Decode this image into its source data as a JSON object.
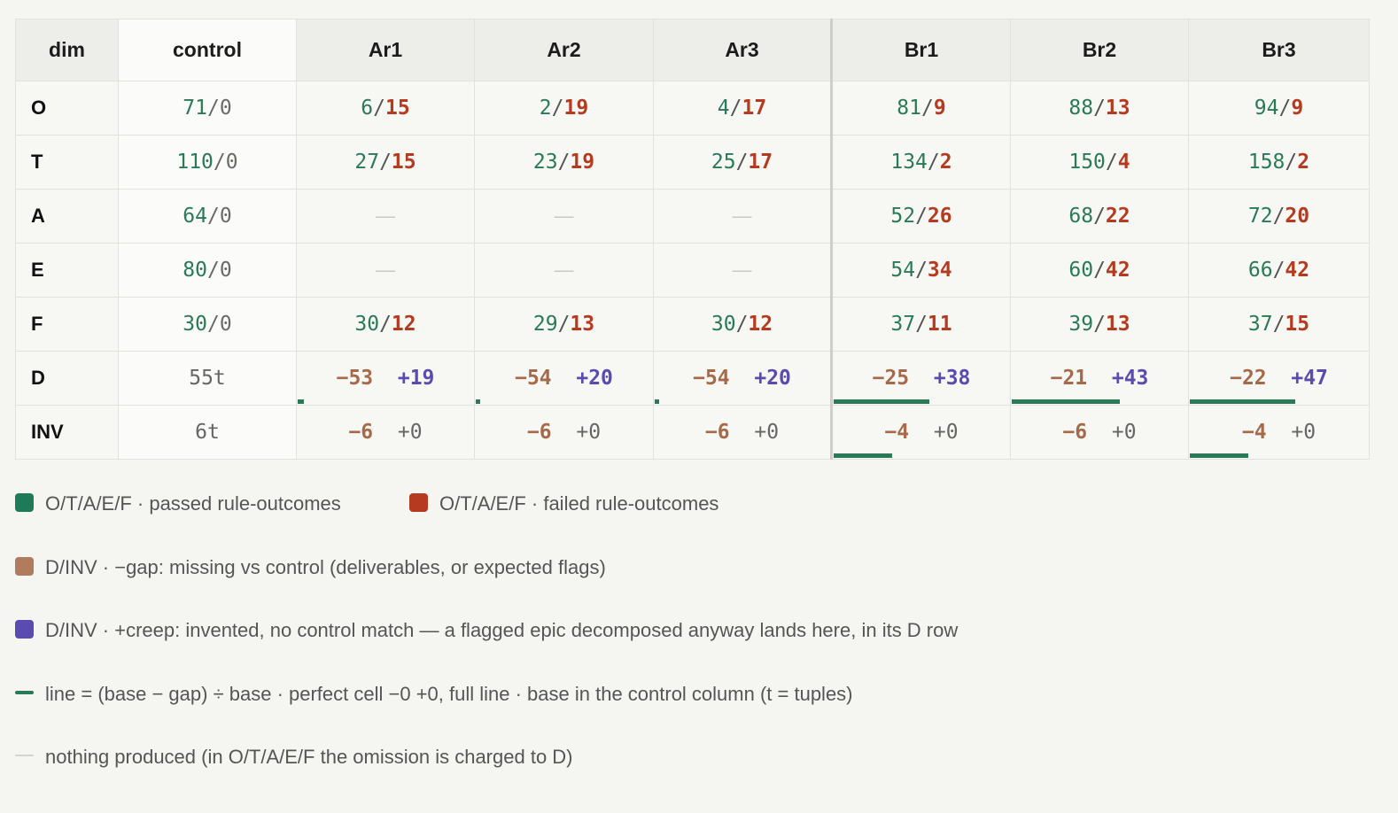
{
  "colors": {
    "pass": "#2a7a55",
    "fail": "#b53a1f",
    "gap": "#a66a4a",
    "creep": "#5a4bb0",
    "line": "#2a7a55",
    "nothing": "#c9c9c4"
  },
  "table": {
    "headers": [
      "dim",
      "control",
      "Ar1",
      "Ar2",
      "Ar3",
      "Br1",
      "Br2",
      "Br3"
    ],
    "rows": [
      {
        "dim": "O",
        "control": [
          "71",
          "0"
        ],
        "cells": [
          [
            "6",
            "15"
          ],
          [
            "2",
            "19"
          ],
          [
            "4",
            "17"
          ],
          [
            "81",
            "9"
          ],
          [
            "88",
            "13"
          ],
          [
            "94",
            "9"
          ]
        ]
      },
      {
        "dim": "T",
        "control": [
          "110",
          "0"
        ],
        "cells": [
          [
            "27",
            "15"
          ],
          [
            "23",
            "19"
          ],
          [
            "25",
            "17"
          ],
          [
            "134",
            "2"
          ],
          [
            "150",
            "4"
          ],
          [
            "158",
            "2"
          ]
        ]
      },
      {
        "dim": "A",
        "control": [
          "64",
          "0"
        ],
        "cells": [
          "—",
          "—",
          "—",
          [
            "52",
            "26"
          ],
          [
            "68",
            "22"
          ],
          [
            "72",
            "20"
          ]
        ]
      },
      {
        "dim": "E",
        "control": [
          "80",
          "0"
        ],
        "cells": [
          "—",
          "—",
          "—",
          [
            "54",
            "34"
          ],
          [
            "60",
            "42"
          ],
          [
            "66",
            "42"
          ]
        ]
      },
      {
        "dim": "F",
        "control": [
          "30",
          "0"
        ],
        "cells": [
          [
            "30",
            "12"
          ],
          [
            "29",
            "13"
          ],
          [
            "30",
            "12"
          ],
          [
            "37",
            "11"
          ],
          [
            "39",
            "13"
          ],
          [
            "37",
            "15"
          ]
        ]
      }
    ],
    "delta_rows": [
      {
        "dim": "D",
        "control": "55t",
        "cells": [
          {
            "gap": "−53",
            "creep": "+19",
            "line": 0.036
          },
          {
            "gap": "−54",
            "creep": "+20",
            "line": 0.018
          },
          {
            "gap": "−54",
            "creep": "+20",
            "line": 0.018
          },
          {
            "gap": "−25",
            "creep": "+38",
            "line": 0.545
          },
          {
            "gap": "−21",
            "creep": "+43",
            "line": 0.618
          },
          {
            "gap": "−22",
            "creep": "+47",
            "line": 0.6
          }
        ]
      },
      {
        "dim": "INV",
        "control": "6t",
        "cells": [
          {
            "gap": "−6",
            "creep": "+0",
            "line": 0
          },
          {
            "gap": "−6",
            "creep": "+0",
            "line": 0
          },
          {
            "gap": "−6",
            "creep": "+0",
            "line": 0
          },
          {
            "gap": "−4",
            "creep": "+0",
            "line": 0.333
          },
          {
            "gap": "−6",
            "creep": "+0",
            "line": 0
          },
          {
            "gap": "−4",
            "creep": "+0",
            "line": 0.333
          }
        ]
      }
    ]
  },
  "legend": {
    "passed": "O/T/A/E/F · passed rule-outcomes",
    "failed": "O/T/A/E/F · failed rule-outcomes",
    "gap": "D/INV · −gap: missing vs control (deliverables, or expected flags)",
    "creep": "D/INV · +creep: invented, no control match — a flagged epic decomposed anyway lands here, in its D row",
    "line": "line = (base − gap) ÷ base · perfect cell −0 +0, full line · base in the control column (t = tuples)",
    "nothing": "nothing produced (in O/T/A/E/F the omission is charged to D)"
  }
}
